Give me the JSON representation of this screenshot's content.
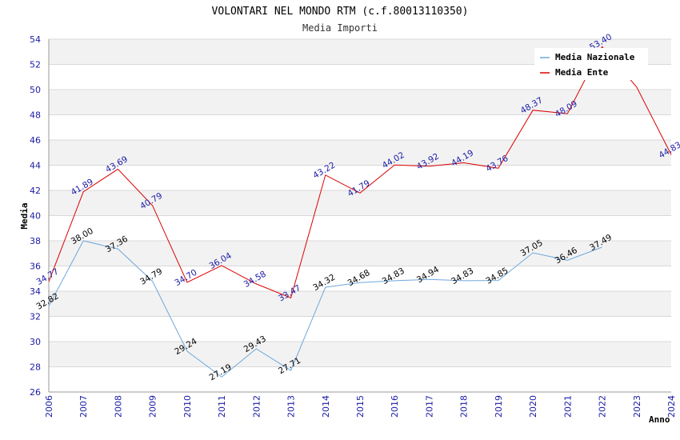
{
  "chart_data": {
    "type": "line",
    "title": "VOLONTARI NEL MONDO RTM (c.f.80013110350)",
    "subtitle": "Media Importi",
    "xlabel": "Anno",
    "ylabel": "Media",
    "x": [
      2006,
      2007,
      2008,
      2009,
      2010,
      2011,
      2012,
      2013,
      2014,
      2015,
      2016,
      2017,
      2018,
      2019,
      2020,
      2021,
      2022,
      2023,
      2024
    ],
    "ylim": [
      26,
      54
    ],
    "yticks": [
      26,
      28,
      30,
      32,
      34,
      36,
      38,
      40,
      42,
      44,
      46,
      48,
      50,
      52,
      54
    ],
    "legend_position": "top-right",
    "series": [
      {
        "name": "Media Nazionale",
        "color": "#6fa8dc",
        "values": [
          32.82,
          38.0,
          37.36,
          34.79,
          29.24,
          27.19,
          29.43,
          27.71,
          34.32,
          34.68,
          34.83,
          34.94,
          34.83,
          34.85,
          37.05,
          36.46,
          37.49,
          null,
          null
        ],
        "labels": [
          "32.82",
          "38.00",
          "37.36",
          "34.79",
          "29.24",
          "27.19",
          "29.43",
          "27.71",
          "34.32",
          "34.68",
          "34.83",
          "34.94",
          "34.83",
          "34.85",
          "37.05",
          "36.46",
          "37.49",
          "",
          ""
        ]
      },
      {
        "name": "Media Ente",
        "color": "#dd0000",
        "values": [
          34.77,
          41.89,
          43.69,
          40.79,
          34.7,
          36.04,
          34.58,
          33.47,
          43.22,
          41.79,
          44.02,
          43.92,
          44.19,
          43.76,
          48.37,
          48.09,
          53.4,
          50.2,
          44.83
        ],
        "labels": [
          "34.77",
          "41.89",
          "43.69",
          "40.79",
          "34.70",
          "36.04",
          "34.58",
          "33.47",
          "43.22",
          "41.79",
          "44.02",
          "43.92",
          "44.19",
          "43.76",
          "48.37",
          "48.09",
          "53.40",
          "",
          "44.83"
        ]
      }
    ]
  }
}
